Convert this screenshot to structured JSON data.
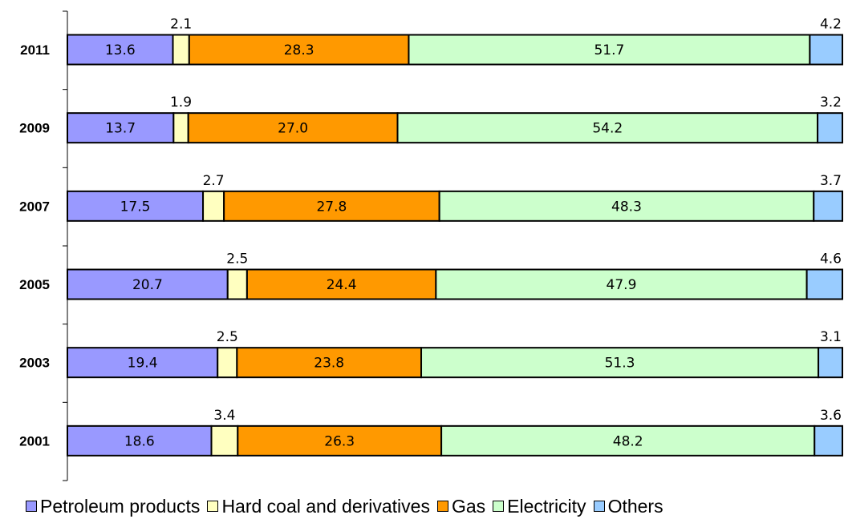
{
  "chart_data": {
    "type": "bar",
    "orientation": "horizontal",
    "stacked": true,
    "categories": [
      "2011",
      "2009",
      "2007",
      "2005",
      "2003",
      "2001"
    ],
    "series": [
      {
        "name": "Petroleum products",
        "color": "#9999FF",
        "values": [
          13.6,
          13.7,
          17.5,
          20.7,
          19.4,
          18.6
        ]
      },
      {
        "name": "Hard coal and derivatives",
        "color": "#FFFFC0",
        "values": [
          2.1,
          1.9,
          2.7,
          2.5,
          2.5,
          3.4
        ]
      },
      {
        "name": "Gas",
        "color": "#FF9900",
        "values": [
          28.3,
          27.0,
          27.8,
          24.4,
          23.8,
          26.3
        ]
      },
      {
        "name": "Electricity",
        "color": "#CCFFCC",
        "values": [
          51.7,
          54.2,
          48.3,
          47.9,
          51.3,
          48.2
        ]
      },
      {
        "name": "Others",
        "color": "#99CCFF",
        "values": [
          4.2,
          3.2,
          3.7,
          4.6,
          3.1,
          3.6
        ]
      }
    ],
    "title": "",
    "xlabel": "",
    "ylabel": "",
    "grid": false,
    "legend_position": "bottom"
  }
}
